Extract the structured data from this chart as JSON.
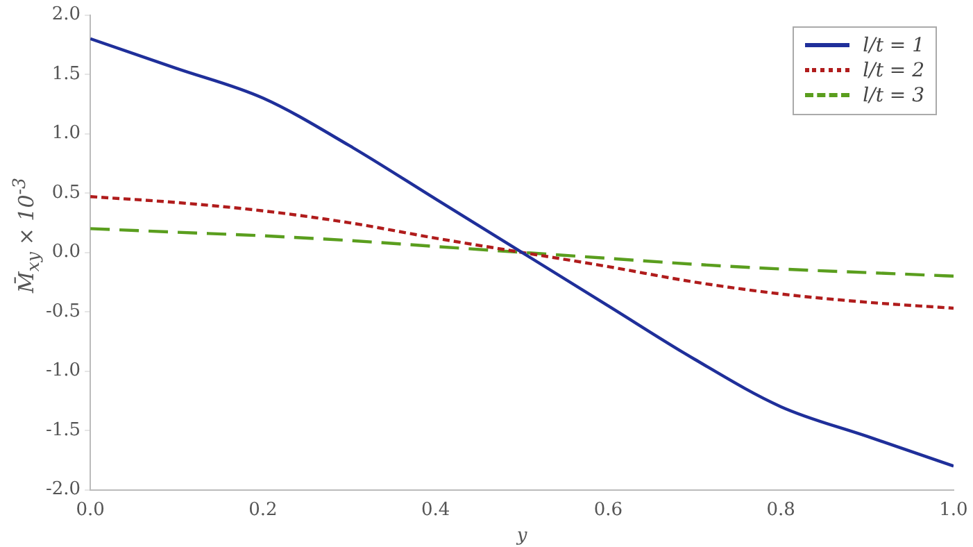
{
  "chart_data": {
    "type": "line",
    "xlabel": "y",
    "ylabel": "M̄$_{xy}$ × 10$^{-3}$",
    "x": [
      0,
      0.1,
      0.2,
      0.3,
      0.4,
      0.5,
      0.6,
      0.7,
      0.8,
      0.9,
      1.0
    ],
    "series": [
      {
        "name": "l/t = 1",
        "color": "#1f2f9a",
        "line_style": "solid",
        "values": [
          1.8,
          1.55,
          1.3,
          0.9,
          0.45,
          0,
          -0.45,
          -0.9,
          -1.3,
          -1.55,
          -1.8
        ]
      },
      {
        "name": "l/t = 2",
        "color": "#b01c1c",
        "line_style": "dotted",
        "values": [
          0.47,
          0.42,
          0.35,
          0.25,
          0.12,
          0,
          -0.12,
          -0.25,
          -0.35,
          -0.42,
          -0.47
        ]
      },
      {
        "name": "l/t = 3",
        "color": "#5a9e1e",
        "line_style": "dashed",
        "values": [
          0.2,
          0.17,
          0.14,
          0.1,
          0.05,
          0,
          -0.05,
          -0.1,
          -0.14,
          -0.17,
          -0.2
        ]
      }
    ],
    "xlim": [
      0,
      1
    ],
    "xticks": [
      {
        "value": 0,
        "label": "0.0"
      },
      0.2,
      0.4,
      0.6,
      0.8,
      {
        "value": 1,
        "label": "1.0"
      }
    ],
    "ylim": [
      -2,
      2
    ],
    "yticks": [
      {
        "value": -2,
        "label": "-2.0"
      },
      -1.5,
      {
        "value": -1,
        "label": "-1.0"
      },
      -0.5,
      {
        "value": 0,
        "label": "0.0"
      },
      0.5,
      {
        "value": 1,
        "label": "1.0"
      },
      1.5,
      {
        "value": 2,
        "label": "2.0"
      }
    ],
    "grid": false,
    "legend": "top right",
    "marker": "none"
  }
}
